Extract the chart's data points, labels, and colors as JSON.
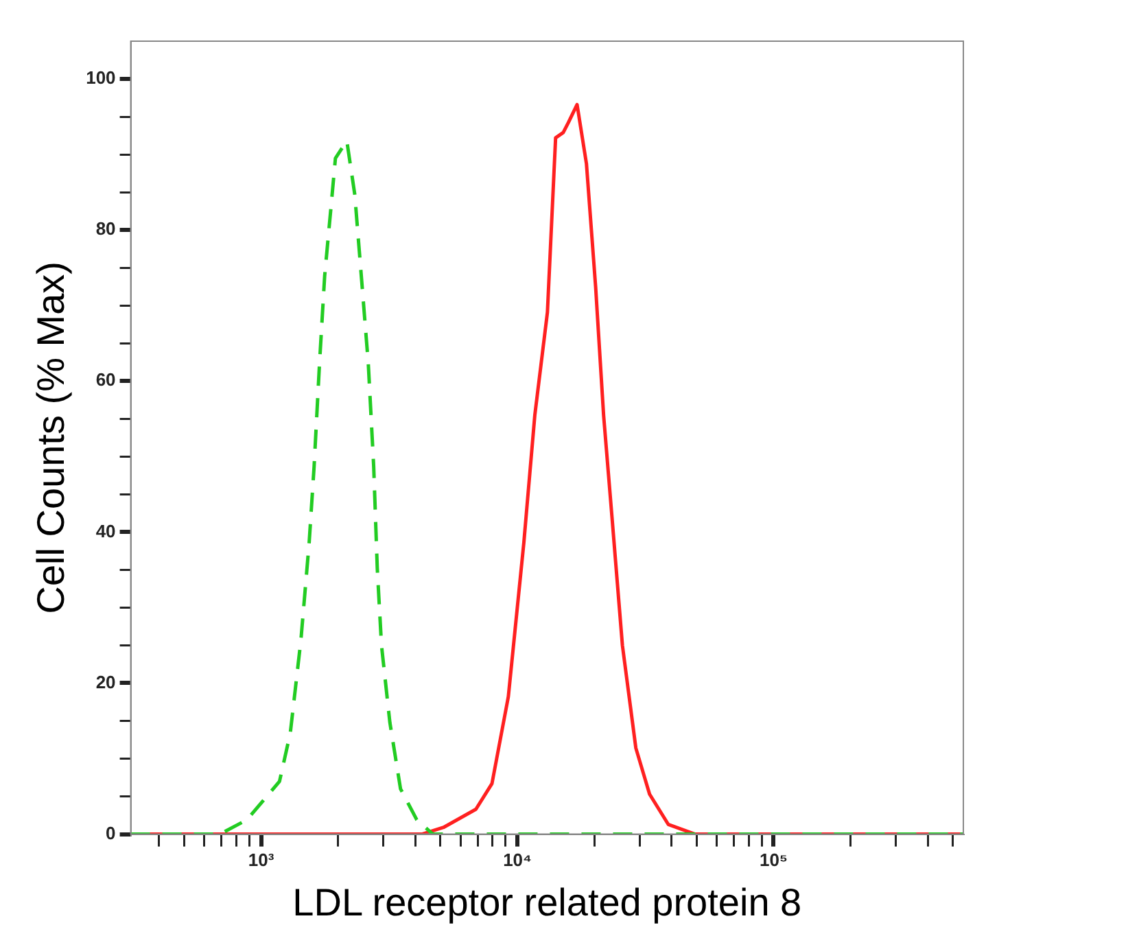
{
  "chart_data": {
    "type": "line",
    "xlabel": "LDL receptor related protein 8",
    "ylabel": "Cell Counts (% Max)",
    "log": "x",
    "xlim": [
      310,
      550000
    ],
    "ylim": [
      0,
      105
    ],
    "xticks": [
      {
        "value": 400,
        "label": null
      },
      {
        "value": 500,
        "label": null
      },
      {
        "value": 600,
        "label": null
      },
      {
        "value": 700,
        "label": null
      },
      {
        "value": 800,
        "label": null
      },
      {
        "value": 900,
        "label": null
      },
      {
        "value": 1000,
        "label": "10³"
      },
      {
        "value": 2000,
        "label": null
      },
      {
        "value": 3000,
        "label": null
      },
      {
        "value": 4000,
        "label": null
      },
      {
        "value": 5000,
        "label": null
      },
      {
        "value": 6000,
        "label": null
      },
      {
        "value": 7000,
        "label": null
      },
      {
        "value": 8000,
        "label": null
      },
      {
        "value": 9000,
        "label": null
      },
      {
        "value": 10000,
        "label": "10⁴"
      },
      {
        "value": 20000,
        "label": null
      },
      {
        "value": 30000,
        "label": null
      },
      {
        "value": 40000,
        "label": null
      },
      {
        "value": 50000,
        "label": null
      },
      {
        "value": 60000,
        "label": null
      },
      {
        "value": 70000,
        "label": null
      },
      {
        "value": 80000,
        "label": null
      },
      {
        "value": 90000,
        "label": null
      },
      {
        "value": 100000,
        "label": "10⁵"
      },
      {
        "value": 200000,
        "label": null
      },
      {
        "value": 300000,
        "label": null
      },
      {
        "value": 400000,
        "label": null
      },
      {
        "value": 500000,
        "label": null
      }
    ],
    "yticks": [
      0,
      {
        "value": 5,
        "label": null
      },
      {
        "value": 10,
        "label": null
      },
      {
        "value": 15,
        "label": null
      },
      20,
      {
        "value": 25,
        "label": null
      },
      {
        "value": 30,
        "label": null
      },
      {
        "value": 35,
        "label": null
      },
      40,
      {
        "value": 45,
        "label": null
      },
      {
        "value": 50,
        "label": null
      },
      {
        "value": 55,
        "label": null
      },
      60,
      {
        "value": 65,
        "label": null
      },
      {
        "value": 70,
        "label": null
      },
      {
        "value": 75,
        "label": null
      },
      80,
      {
        "value": 85,
        "label": null
      },
      {
        "value": 90,
        "label": null
      },
      {
        "value": 95,
        "label": null
      },
      100
    ],
    "grid": false,
    "legend": false,
    "marker": "none",
    "series": [
      {
        "color": "#22cc22",
        "line_style": "dashed",
        "x": [
          310,
          690,
          880,
          1180,
          1300,
          1430,
          1540,
          1610,
          1690,
          1770,
          1870,
          1950,
          2160,
          2320,
          2470,
          2620,
          2750,
          2840,
          2950,
          3180,
          3500,
          4050,
          4680,
          550000
        ],
        "values": [
          0,
          0,
          1.9,
          7,
          13.4,
          25.7,
          38.6,
          48.7,
          62.3,
          73.9,
          82.7,
          89.5,
          91.8,
          84.7,
          73.2,
          62.3,
          48.7,
          35.2,
          25,
          14.8,
          6,
          1.9,
          0,
          0
        ]
      },
      {
        "color": "#ff2020",
        "line_style": "solid",
        "x": [
          310,
          4240,
          5150,
          6890,
          7960,
          9220,
          10600,
          11700,
          13100,
          14100,
          15100,
          15800,
          17100,
          18600,
          20200,
          21700,
          23400,
          25700,
          29000,
          32800,
          38800,
          49400,
          550000
        ],
        "values": [
          0,
          0,
          0.9,
          3.3,
          6.7,
          18.2,
          38.6,
          55.5,
          69.1,
          92.2,
          92.9,
          94.2,
          96.6,
          88.8,
          72.5,
          55.5,
          42,
          25,
          11.4,
          5.3,
          1.3,
          0,
          0
        ]
      }
    ]
  }
}
